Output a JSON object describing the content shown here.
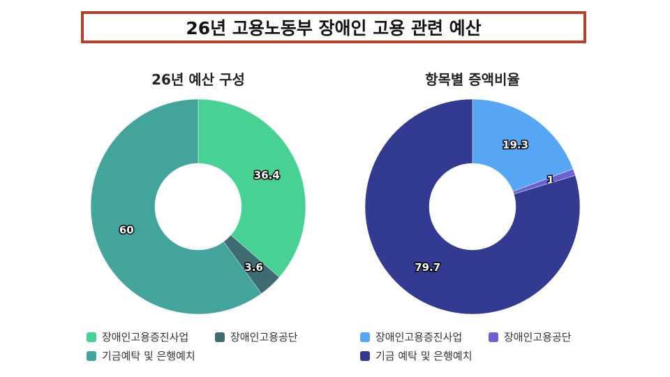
{
  "title": "26년 고용노동부 장애인 고용 관련 예산",
  "chart_data": [
    {
      "type": "pie",
      "donut": true,
      "title": "26년 예산 구성",
      "categories": [
        "장애인고용증진사업",
        "장애인고용공단",
        "기금예탁 및 은행예치"
      ],
      "values": [
        36.4,
        3.6,
        60
      ],
      "colors": [
        "#47d193",
        "#3f6b73",
        "#42a49a"
      ],
      "legend": "bottom"
    },
    {
      "type": "pie",
      "donut": true,
      "title": "항목별 증액비율",
      "categories": [
        "장애인고용증진사업",
        "장애인고용공단",
        "기금 예탁 및 은행예치"
      ],
      "values": [
        19.3,
        1,
        79.7
      ],
      "colors": [
        "#57a6f5",
        "#6a60cf",
        "#323a92"
      ],
      "legend": "bottom"
    }
  ]
}
